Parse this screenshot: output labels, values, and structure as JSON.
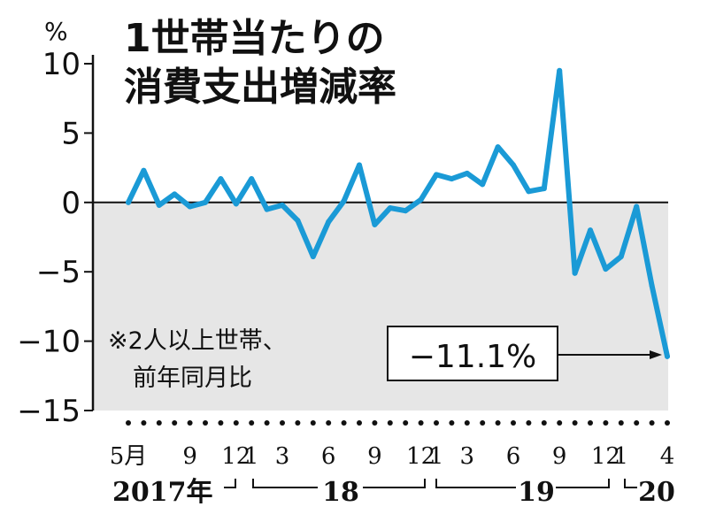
{
  "chart_data": {
    "type": "line",
    "title_line1": "1世帯当たりの",
    "title_line2": "消費支出増減率",
    "unit": "%",
    "ylim": [
      -15,
      10
    ],
    "yticks": [
      "10",
      "5",
      "0",
      "-5",
      "-10",
      "-15"
    ],
    "note_line1": "※2人以上世帯、",
    "note_line2": "前年同月比",
    "callout": "−11.1%",
    "months": [
      "2017-05",
      "2017-06",
      "2017-07",
      "2017-08",
      "2017-09",
      "2017-10",
      "2017-11",
      "2017-12",
      "2018-01",
      "2018-02",
      "2018-03",
      "2018-04",
      "2018-05",
      "2018-06",
      "2018-07",
      "2018-08",
      "2018-09",
      "2018-10",
      "2018-11",
      "2018-12",
      "2019-01",
      "2019-02",
      "2019-03",
      "2019-04",
      "2019-05",
      "2019-06",
      "2019-07",
      "2019-08",
      "2019-09",
      "2019-10",
      "2019-11",
      "2019-12",
      "2020-01",
      "2020-02",
      "2020-03",
      "2020-04"
    ],
    "values": [
      0.0,
      2.3,
      -0.2,
      0.6,
      -0.3,
      0.0,
      1.7,
      -0.1,
      1.7,
      -0.5,
      -0.2,
      -1.3,
      -3.9,
      -1.4,
      0.1,
      2.7,
      -1.6,
      -0.4,
      -0.6,
      0.2,
      2.0,
      1.7,
      2.1,
      1.3,
      4.0,
      2.7,
      0.8,
      1.0,
      9.5,
      -5.1,
      -2.0,
      -4.8,
      -3.9,
      -0.3,
      -6.0,
      -11.1
    ],
    "xticks": [
      {
        "index": 0,
        "label": "5月"
      },
      {
        "index": 4,
        "label": "9"
      },
      {
        "index": 7,
        "label": "12"
      },
      {
        "index": 8,
        "label": "1"
      },
      {
        "index": 10,
        "label": "3"
      },
      {
        "index": 13,
        "label": "6"
      },
      {
        "index": 16,
        "label": "9"
      },
      {
        "index": 19,
        "label": "12"
      },
      {
        "index": 20,
        "label": "1"
      },
      {
        "index": 22,
        "label": "3"
      },
      {
        "index": 25,
        "label": "6"
      },
      {
        "index": 28,
        "label": "9"
      },
      {
        "index": 31,
        "label": "12"
      },
      {
        "index": 32,
        "label": "1"
      },
      {
        "index": 35,
        "label": "4"
      }
    ],
    "years": [
      "2017年",
      "18",
      "19",
      "20"
    ],
    "grid": false,
    "colors": {
      "line": "#1a9ad6",
      "negative_fill": "#e6e6e6",
      "axis": "#111111"
    }
  }
}
